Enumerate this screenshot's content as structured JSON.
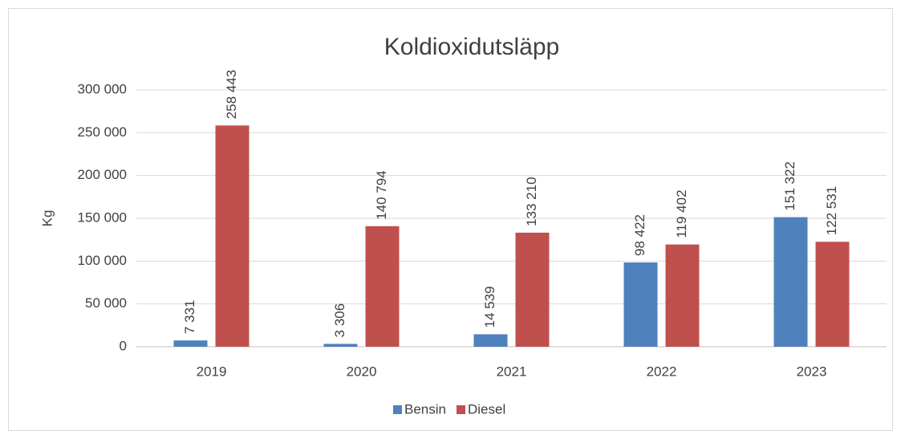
{
  "chart_data": {
    "type": "bar",
    "title": "Koldioxidutsläpp",
    "y_label": "Kg",
    "categories": [
      "2019",
      "2020",
      "2021",
      "2022",
      "2023"
    ],
    "series": [
      {
        "name": "Bensin",
        "color": "#4f81bd",
        "values": [
          7331,
          3306,
          14539,
          98422,
          151322
        ],
        "value_labels": [
          "7 331",
          "3 306",
          "14 539",
          "98 422",
          "151 322"
        ]
      },
      {
        "name": "Diesel",
        "color": "#c0504d",
        "values": [
          258443,
          140794,
          133210,
          119402,
          122531
        ],
        "value_labels": [
          "258 443",
          "140 794",
          "133 210",
          "119 402",
          "122 531"
        ]
      }
    ],
    "ylim": [
      0,
      300000
    ],
    "yticks": [
      0,
      {
        "value": 50000,
        "label": "50 000"
      },
      {
        "value": 100000,
        "label": "100 000"
      },
      {
        "value": 150000,
        "label": "150 000"
      },
      {
        "value": 200000,
        "label": "200 000"
      },
      {
        "value": 250000,
        "label": "250 000"
      },
      {
        "value": 300000,
        "label": "300 000"
      }
    ],
    "grid": true,
    "legend": "bottom"
  }
}
